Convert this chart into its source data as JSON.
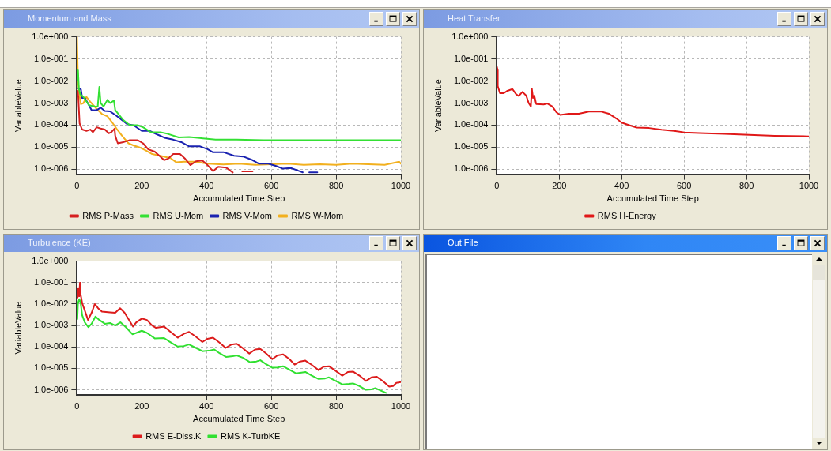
{
  "chart_data": [
    {
      "type": "line",
      "title": "Momentum and Mass",
      "xlabel": "Accumulated Time Step",
      "ylabel": "VariableValue",
      "log": "y",
      "xlim": [
        0,
        1000
      ],
      "xticks": [
        0,
        200,
        400,
        600,
        800,
        1000
      ],
      "ylim": [
        6e-07,
        1
      ],
      "yticks": [
        {
          "value": 1e-06,
          "label": "1.0e-006"
        },
        {
          "value": 1e-05,
          "label": "1.0e-005"
        },
        {
          "value": 0.0001,
          "label": "1.0e-004"
        },
        {
          "value": 0.001,
          "label": "1.0e-003"
        },
        {
          "value": 0.01,
          "label": "1.0e-002"
        },
        {
          "value": 0.1,
          "label": "1.0e-001"
        },
        {
          "value": 1,
          "label": "1.0e+000"
        }
      ],
      "grid": true,
      "legend": "bottom",
      "series": [
        {
          "name": "RMS P-Mass",
          "color": "#d62020",
          "x": [
            0,
            2,
            4,
            8,
            16,
            29,
            41,
            49,
            61,
            73,
            86,
            98,
            106,
            116,
            118,
            126,
            143,
            163,
            187,
            204,
            220,
            240,
            257,
            269,
            281,
            297,
            318,
            334,
            350,
            367,
            387,
            403,
            420,
            436,
            460,
            481,
            490,
            510,
            542
          ],
          "values": [
            0.0036,
            0.0036,
            0.0019,
            0.00012,
            6.3e-05,
            5.5e-05,
            6.3e-05,
            4.8e-05,
            8e-05,
            7e-05,
            6.3e-05,
            4.3e-05,
            4.8e-05,
            7e-05,
            3.3e-05,
            1.5e-05,
            1.7e-05,
            2.1e-05,
            2.1e-05,
            1.5e-05,
            8e-06,
            6.3e-06,
            3.8e-06,
            2.6e-06,
            3e-06,
            4.9e-06,
            4.9e-06,
            3e-06,
            1.55e-06,
            2.3e-06,
            2.5e-06,
            1.55e-06,
            8.3e-07,
            1.3e-06,
            1.2e-06,
            7.2e-07,
            null,
            8e-07,
            8e-07
          ]
        },
        {
          "name": "RMS U-Mom",
          "color": "#33e033",
          "x": [
            1,
            3,
            6,
            10,
            20,
            37,
            57,
            64,
            69,
            73,
            82,
            94,
            102,
            114,
            118,
            143,
            163,
            187,
            204,
            228,
            257,
            281,
            314,
            346,
            379,
            428,
            493,
            575,
            738,
            1000
          ],
          "values": [
            0.011,
            0.033,
            0.0042,
            0.0025,
            0.0019,
            0.0008,
            0.00069,
            0.0007,
            0.0054,
            0.001,
            0.0007,
            0.0014,
            0.001,
            0.0013,
            0.00048,
            0.00017,
            0.0001,
            0.0001,
            8e-05,
            4.8e-05,
            4.8e-05,
            4e-05,
            2.8e-05,
            2.9e-05,
            2.6e-05,
            2.2e-05,
            2.2e-05,
            2.1e-05,
            2.1e-05,
            2.1e-05
          ]
        },
        {
          "name": "RMS V-Mom",
          "color": "#1a22b0",
          "x": [
            4,
            12,
            16,
            24,
            37,
            45,
            61,
            73,
            86,
            102,
            118,
            134,
            155,
            175,
            200,
            224,
            249,
            273,
            297,
            322,
            346,
            379,
            403,
            420,
            452,
            485,
            513,
            542,
            562,
            591,
            615,
            636,
            660,
            680,
            697,
            705,
            717,
            742
          ],
          "values": [
            0.0047,
            0.0042,
            0.0017,
            0.0017,
            0.0008,
            0.00048,
            0.00048,
            0.00062,
            0.00044,
            0.00042,
            0.00029,
            0.000195,
            0.00011,
            9.8e-05,
            5.5e-05,
            5.5e-05,
            3.7e-05,
            2.6e-05,
            2.2e-05,
            1.7e-05,
            1.1e-05,
            1.1e-05,
            8.2e-06,
            5.9e-06,
            6e-06,
            4.1e-06,
            3.8e-06,
            2.6e-06,
            1.8e-06,
            1.8e-06,
            1.4e-06,
            1.07e-06,
            1.15e-06,
            9e-07,
            7.3e-07,
            null,
            7.3e-07,
            7.3e-07
          ]
        },
        {
          "name": "RMS W-Mom",
          "color": "#f2b01e",
          "x": [
            0,
            1,
            3,
            6,
            12,
            20,
            29,
            41,
            61,
            77,
            94,
            106,
            122,
            139,
            159,
            175,
            192,
            212,
            232,
            257,
            289,
            306,
            330,
            363,
            403,
            452,
            500,
            550,
            600,
            650,
            700,
            750,
            800,
            850,
            900,
            950,
            995,
            1000
          ],
          "values": [
            1,
            1,
            0.011,
            0.0032,
            0.0009,
            0.001,
            0.0019,
            0.00115,
            0.00054,
            0.00032,
            0.00025,
            0.00015,
            7e-05,
            3.3e-05,
            1.5e-05,
            1.2e-05,
            1e-05,
            7.2e-06,
            4.9e-06,
            4.1e-06,
            3.2e-06,
            2.1e-06,
            2.2e-06,
            2.2e-06,
            1.8e-06,
            1.65e-06,
            1.8e-06,
            1.6e-06,
            1.7e-06,
            1.8e-06,
            1.6e-06,
            1.7e-06,
            1.6e-06,
            1.8e-06,
            1.7e-06,
            1.6e-06,
            2.2e-06,
            1.8e-06
          ]
        }
      ]
    },
    {
      "type": "line",
      "title": "Heat Transfer",
      "xlabel": "Accumulated Time Step",
      "ylabel": "VariableValue",
      "log": "y",
      "xlim": [
        0,
        1000
      ],
      "xticks": [
        0,
        200,
        400,
        600,
        800,
        1000
      ],
      "ylim": [
        6e-07,
        1
      ],
      "yticks": [
        {
          "value": 1e-06,
          "label": "1.0e-006"
        },
        {
          "value": 1e-05,
          "label": "1.0e-005"
        },
        {
          "value": 0.0001,
          "label": "1.0e-004"
        },
        {
          "value": 0.001,
          "label": "1.0e-003"
        },
        {
          "value": 0.01,
          "label": "1.0e-002"
        },
        {
          "value": 0.1,
          "label": "1.0e-001"
        },
        {
          "value": 1,
          "label": "1.0e+000"
        }
      ],
      "grid": true,
      "legend": "bottom",
      "series": [
        {
          "name": "RMS H-Energy",
          "color": "#e01818",
          "x": [
            0,
            2,
            3,
            10,
            22,
            34,
            50,
            62,
            70,
            82,
            94,
            102,
            109,
            112,
            116,
            120,
            126,
            150,
            162,
            178,
            191,
            203,
            231,
            263,
            295,
            335,
            359,
            383,
            400,
            424,
            448,
            488,
            528,
            568,
            601,
            649,
            729,
            809,
            890,
            1000
          ],
          "values": [
            0.044,
            0.034,
            0.0059,
            0.0028,
            0.0028,
            0.0036,
            0.0043,
            0.0025,
            0.0021,
            0.0032,
            0.0022,
            0.001,
            0.0007,
            0.0046,
            0.0017,
            0.0022,
            0.00091,
            0.00086,
            0.00095,
            0.0007,
            0.00038,
            0.00029,
            0.00033,
            0.00033,
            0.00041,
            0.00041,
            0.00033,
            0.0002,
            0.00013,
            0.0001,
            7.8e-05,
            7.4e-05,
            6.2e-05,
            5.5e-05,
            4.7e-05,
            4.4e-05,
            4e-05,
            3.6e-05,
            3.3e-05,
            3.1e-05
          ]
        }
      ]
    },
    {
      "type": "line",
      "title": "Turbulence (KE)",
      "xlabel": "Accumulated Time Step",
      "ylabel": "VariableValue",
      "log": "y",
      "xlim": [
        0,
        1000
      ],
      "xticks": [
        0,
        200,
        400,
        600,
        800,
        1000
      ],
      "ylim": [
        6e-07,
        1
      ],
      "yticks": [
        {
          "value": 1e-06,
          "label": "1.0e-006"
        },
        {
          "value": 1e-05,
          "label": "1.0e-005"
        },
        {
          "value": 0.0001,
          "label": "1.0e-004"
        },
        {
          "value": 0.001,
          "label": "1.0e-003"
        },
        {
          "value": 0.01,
          "label": "1.0e-002"
        },
        {
          "value": 0.1,
          "label": "1.0e-001"
        },
        {
          "value": 1,
          "label": "1.0e+000"
        }
      ],
      "grid": true,
      "legend": "bottom",
      "series": [
        {
          "name": "RMS E-Diss.K",
          "color": "#dc1c1c",
          "x": [
            0,
            2,
            4,
            7,
            9,
            11,
            16,
            24,
            34,
            45,
            55,
            65,
            77,
            102,
            118,
            133,
            147,
            159,
            173,
            183,
            200,
            216,
            232,
            244,
            269,
            289,
            311,
            330,
            346,
            367,
            387,
            403,
            420,
            440,
            459,
            477,
            493,
            513,
            532,
            550,
            566,
            583,
            603,
            619,
            636,
            656,
            672,
            689,
            705,
            725,
            746,
            762,
            778,
            799,
            819,
            836,
            852,
            872,
            892,
            909,
            925,
            945,
            964,
            976,
            986,
            1000
          ],
          "values": [
            0.033,
            0.02,
            0.055,
            0.023,
            0.097,
            0.029,
            0.011,
            0.005,
            0.0018,
            0.0039,
            0.01,
            0.0064,
            0.0044,
            0.0041,
            0.0039,
            0.0064,
            0.0039,
            0.002,
            0.00089,
            0.0014,
            0.0021,
            0.0018,
            0.001,
            0.00078,
            0.00089,
            0.0005,
            0.00027,
            0.00041,
            0.0005,
            0.0003,
            0.00017,
            0.00024,
            0.00027,
            0.00016,
            9e-05,
            0.00013,
            0.00014,
            8.5e-05,
            4.9e-05,
            7.6e-05,
            8.1e-05,
            5.1e-05,
            2.7e-05,
            4e-05,
            4.5e-05,
            2.7e-05,
            1.5e-05,
            2.1e-05,
            2.3e-05,
            1.45e-05,
            8.3e-06,
            1.2e-05,
            1.26e-05,
            7.6e-06,
            4.6e-06,
            6.8e-06,
            7.1e-06,
            4.6e-06,
            2.6e-06,
            3.8e-06,
            4.1e-06,
            2.5e-06,
            1.4e-06,
            1.5e-06,
            2.1e-06,
            2.3e-06
          ]
        },
        {
          "name": "RMS K-TurbKE",
          "color": "#30e030",
          "x": [
            0,
            1,
            3,
            7,
            11,
            16,
            24,
            35,
            45,
            57,
            69,
            86,
            102,
            118,
            134,
            151,
            171,
            183,
            200,
            216,
            240,
            269,
            285,
            310,
            330,
            346,
            367,
            387,
            412,
            424,
            440,
            460,
            481,
            493,
            513,
            534,
            554,
            566,
            583,
            603,
            619,
            636,
            656,
            676,
            693,
            705,
            725,
            746,
            766,
            778,
            799,
            819,
            840,
            852,
            872,
            892,
            909,
            921,
            937,
            954
          ],
          "values": [
            0.0083,
            0.002,
            0.011,
            0.017,
            0.012,
            0.003,
            0.0014,
            0.00083,
            0.0012,
            0.0026,
            0.0018,
            0.0012,
            0.0013,
            0.001,
            0.0014,
            0.00083,
            0.00039,
            0.00045,
            0.00057,
            0.00045,
            0.00025,
            0.00026,
            0.00018,
            0.000105,
            0.00011,
            0.00013,
            9e-05,
            6.3e-05,
            6.9e-05,
            7.6e-05,
            5.1e-05,
            3.4e-05,
            3.7e-05,
            4e-05,
            3.1e-05,
            1.95e-05,
            2.1e-05,
            2.4e-05,
            1.6e-05,
            1.07e-05,
            1.1e-05,
            1.26e-05,
            8.7e-06,
            5.9e-06,
            6.4e-06,
            6.8e-06,
            4.6e-06,
            3.2e-06,
            3.4e-06,
            3.8e-06,
            2.6e-06,
            1.8e-06,
            1.9e-06,
            2e-06,
            1.5e-06,
            1e-06,
            1.05e-06,
            1.2e-06,
            9.3e-07,
            7.2e-07
          ]
        }
      ]
    },
    {
      "type": "other",
      "title": "Out File"
    }
  ]
}
